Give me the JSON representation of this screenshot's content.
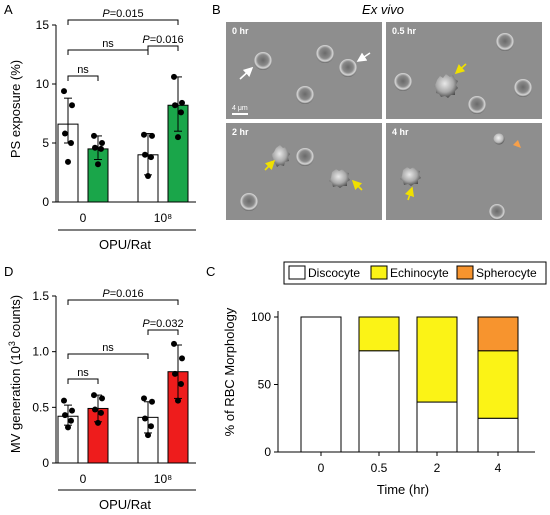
{
  "panels": {
    "A": "A",
    "B": "B",
    "C": "C",
    "D": "D"
  },
  "colors": {
    "green": "#1aa64a",
    "red": "#ee1c1c",
    "white": "#ffffff",
    "yellow": "#fbf316",
    "orange": "#f7942e",
    "sem_bg": "#8d8d8d",
    "arrow_white": "#ffffff",
    "arrow_yellow": "#f0e000",
    "arrow_orange": "#f7a04a"
  },
  "chart_data": [
    {
      "panel": "A",
      "type": "bar",
      "ylabel": "PS exposure (%)",
      "xlabel": "OPU/Rat",
      "categories": [
        "0",
        "10⁸"
      ],
      "ylim": [
        0,
        15
      ],
      "yticks": [
        "0",
        "5",
        "10",
        "15"
      ],
      "bars": [
        {
          "group": "0",
          "color": "white",
          "mean": 6.6,
          "err_low": 5.0,
          "err_high": 8.8,
          "points": [
            9.4,
            8.2,
            5.8,
            5.0,
            3.4
          ]
        },
        {
          "group": "0",
          "color": "green",
          "mean": 4.5,
          "err_low": 3.6,
          "err_high": 5.6,
          "points": [
            5.6,
            5.0,
            4.6,
            4.5,
            3.2
          ]
        },
        {
          "group": "10⁸",
          "color": "white",
          "mean": 4.0,
          "err_low": 2.3,
          "err_high": 5.8,
          "points": [
            5.7,
            5.6,
            4.0,
            3.8,
            2.2
          ]
        },
        {
          "group": "10⁸",
          "color": "green",
          "mean": 8.2,
          "err_low": 6.0,
          "err_high": 10.6,
          "points": [
            10.6,
            8.4,
            8.2,
            7.6,
            5.5
          ]
        }
      ],
      "annotations": [
        {
          "text_p": "P",
          "text": "=0.015",
          "from_bar": 0,
          "to_bar": 3
        },
        {
          "text": "ns",
          "from_bar": 0,
          "to_bar": 2
        },
        {
          "text": "ns",
          "from_bar": 0,
          "to_bar": 1
        },
        {
          "text_p": "P",
          "text": "=0.016",
          "from_bar": 2,
          "to_bar": 3
        }
      ]
    },
    {
      "panel": "D",
      "type": "bar",
      "ylabel_main": "MV generation (10",
      "ylabel_sup": "3",
      "ylabel_end": " counts)",
      "xlabel": "OPU/Rat",
      "categories": [
        "0",
        "10⁸"
      ],
      "ylim": [
        0,
        1.5
      ],
      "yticks": [
        "0",
        "0.5",
        "1.0",
        "1.5"
      ],
      "bars": [
        {
          "group": "0",
          "color": "white",
          "mean": 0.42,
          "err_low": 0.34,
          "err_high": 0.52,
          "points": [
            0.56,
            0.47,
            0.43,
            0.38,
            0.32
          ]
        },
        {
          "group": "0",
          "color": "red",
          "mean": 0.49,
          "err_low": 0.37,
          "err_high": 0.61,
          "points": [
            0.61,
            0.58,
            0.48,
            0.45,
            0.36
          ]
        },
        {
          "group": "10⁸",
          "color": "white",
          "mean": 0.41,
          "err_low": 0.27,
          "err_high": 0.55,
          "points": [
            0.58,
            0.55,
            0.4,
            0.33,
            0.25
          ]
        },
        {
          "group": "10⁸",
          "color": "red",
          "mean": 0.82,
          "err_low": 0.58,
          "err_high": 1.06,
          "points": [
            1.07,
            0.94,
            0.8,
            0.71,
            0.56
          ]
        }
      ],
      "annotations": [
        {
          "text_p": "P",
          "text": "=0.016",
          "from_bar": 0,
          "to_bar": 3
        },
        {
          "text": "ns",
          "from_bar": 0,
          "to_bar": 2
        },
        {
          "text": "ns",
          "from_bar": 0,
          "to_bar": 1
        },
        {
          "text_p": "P",
          "text": "=0.032",
          "from_bar": 2,
          "to_bar": 3
        }
      ]
    },
    {
      "panel": "C",
      "type": "bar",
      "stacked": true,
      "ylabel": "% of RBC Morphology",
      "xlabel": "Time (hr)",
      "categories": [
        "0",
        "0.5",
        "2",
        "4"
      ],
      "ylim": [
        0,
        100
      ],
      "yticks": [
        "0",
        "50",
        "100"
      ],
      "legend_position": "top",
      "series": [
        {
          "name": "Discocyte",
          "color": "white",
          "values": [
            100,
            75,
            37,
            25
          ]
        },
        {
          "name": "Echinocyte",
          "color": "yellow",
          "values": [
            0,
            25,
            63,
            50
          ]
        },
        {
          "name": "Spherocyte",
          "color": "orange",
          "values": [
            0,
            0,
            0,
            25
          ]
        }
      ]
    }
  ],
  "micrographs": {
    "title": "Ex vivo",
    "scale_bar": "4 μm",
    "tiles": [
      {
        "label": "0 hr"
      },
      {
        "label": "0.5 hr"
      },
      {
        "label": "2 hr"
      },
      {
        "label": "4 hr"
      }
    ]
  }
}
